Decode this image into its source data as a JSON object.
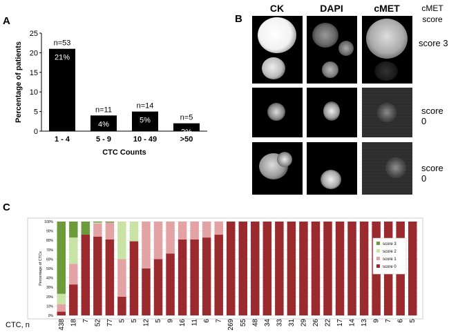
{
  "panels": {
    "a": "A",
    "b": "B",
    "c": "C"
  },
  "chart_a": {
    "type": "bar",
    "categories": [
      "1 - 4",
      "5 - 9",
      "10 - 49",
      ">50"
    ],
    "values": [
      21,
      4,
      5,
      2
    ],
    "inside_labels": [
      "21%",
      "4%",
      "5%",
      "2%"
    ],
    "n_labels": [
      "n=53",
      "n=11",
      "n=14",
      "n=5"
    ],
    "xlabel": "CTC Counts",
    "ylabel": "Percentage of patients",
    "ylim": [
      0,
      25
    ],
    "yticks": [
      0,
      5,
      10,
      15,
      20,
      25
    ],
    "bar_color": "#000000"
  },
  "panel_b": {
    "columns": [
      "CK",
      "DAPI",
      "cMET"
    ],
    "score_header_line1": "cMET",
    "score_header_line2": "score",
    "row_scores": [
      "score 3",
      "score 0",
      "score 0"
    ]
  },
  "chart_data": {
    "type": "bar",
    "stacked": true,
    "ylabel": "Percentage of CTCs",
    "x_prefix": "CTC, n",
    "categories": [
      "438",
      "18",
      "7",
      "52",
      "77",
      "5",
      "5",
      "12",
      "5",
      "9",
      "16",
      "11",
      "6",
      "7",
      "269",
      "55",
      "48",
      "34",
      "33",
      "31",
      "29",
      "26",
      "22",
      "17",
      "14",
      "13",
      "9",
      "7",
      "6",
      "5"
    ],
    "yticks": [
      "0%",
      "10%",
      "20%",
      "30%",
      "40%",
      "50%",
      "60%",
      "70%",
      "80%",
      "90%",
      "100%"
    ],
    "ylim": [
      0,
      100
    ],
    "series": [
      {
        "name": "score 0",
        "color": "#9b2a2e",
        "values": [
          4,
          33,
          86,
          84,
          81,
          20,
          79,
          50,
          60,
          66,
          81,
          81,
          83,
          86,
          100,
          100,
          100,
          100,
          100,
          100,
          100,
          100,
          100,
          100,
          100,
          100,
          100,
          100,
          100,
          100
        ]
      },
      {
        "name": "score 1",
        "color": "#e3a3a5",
        "values": [
          8,
          22,
          0,
          14,
          18,
          40,
          0,
          50,
          40,
          34,
          19,
          19,
          17,
          14,
          0,
          0,
          0,
          0,
          0,
          0,
          0,
          0,
          0,
          0,
          0,
          0,
          0,
          0,
          0,
          0
        ]
      },
      {
        "name": "score 2",
        "color": "#c9e3a6",
        "values": [
          11,
          28,
          0,
          1,
          0,
          40,
          21,
          0,
          0,
          0,
          0,
          0,
          0,
          0,
          0,
          0,
          0,
          0,
          0,
          0,
          0,
          0,
          0,
          0,
          0,
          0,
          0,
          0,
          0,
          0
        ]
      },
      {
        "name": "score 3",
        "color": "#6d9b3c",
        "values": [
          77,
          17,
          14,
          1,
          1,
          0,
          0,
          0,
          0,
          0,
          0,
          0,
          0,
          0,
          0,
          0,
          0,
          0,
          0,
          0,
          0,
          0,
          0,
          0,
          0,
          0,
          0,
          0,
          0,
          0
        ]
      }
    ],
    "legend_order": [
      "score 3",
      "score 2",
      "score 1",
      "score 0"
    ],
    "legend_position": "right"
  }
}
